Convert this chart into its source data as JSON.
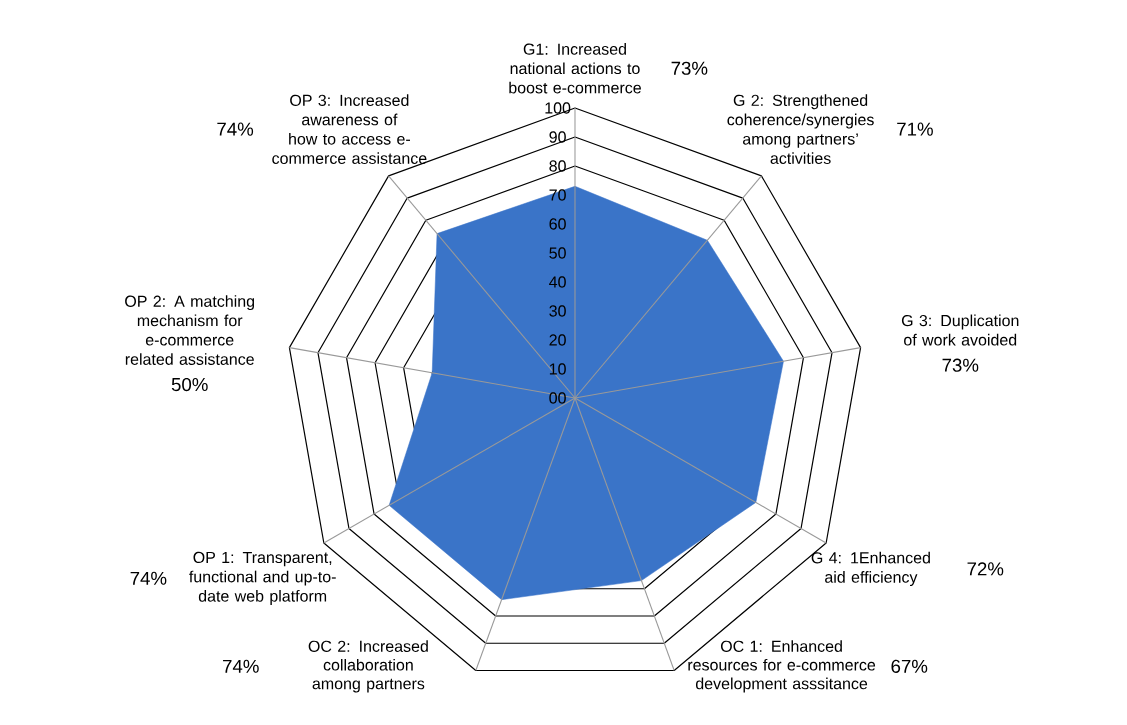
{
  "chart_data": {
    "type": "radar",
    "categories": [
      "G1: Increased national actions to boost e-commerce",
      "G 2: Strengthened coherence/synergies among partners’ activities",
      "G 3: Duplication of work avoided",
      "G 4: 1Enhanced aid efficiency",
      "OC 1: Enhanced resources for e-commerce development asssitance",
      "OC 2: Increased collaboration among partners",
      "OP 1: Transparent, functional and up-to-date web platform",
      "OP 2: A matching mechanism for e-commerce related assistance",
      "OP 3: Increased awareness of how to access e-commerce assistance"
    ],
    "series": [
      {
        "color": "#3a74c8",
        "values": [
          73,
          71,
          73,
          72,
          67,
          74,
          74,
          50,
          74
        ]
      }
    ],
    "annotations": [
      "73%",
      "71%",
      "73%",
      "72%",
      "67%",
      "74%",
      "74%",
      "50%",
      "74%"
    ],
    "ylim": [
      0,
      100
    ],
    "yticks": [
      {
        "value": 0,
        "label": "00"
      },
      10,
      20,
      30,
      40,
      50,
      60,
      70,
      80,
      90,
      100
    ],
    "grid": true
  }
}
